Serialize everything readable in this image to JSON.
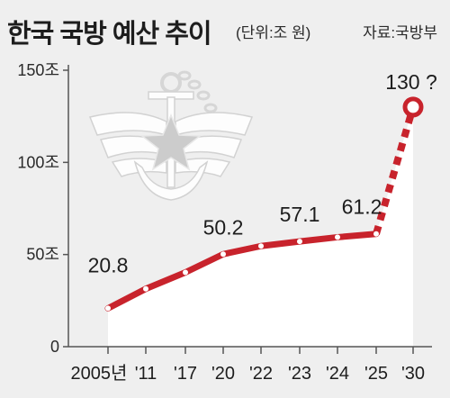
{
  "header": {
    "title": "한국 국방 예산 추이",
    "unit": "(단위:조 원)",
    "source": "자료:국방부"
  },
  "chart_data": {
    "type": "line",
    "title": "한국 국방 예산 추이",
    "unit": "(단위:조 원)",
    "source": "자료:국방부",
    "categories": [
      "2005년",
      "'11",
      "'17",
      "'20",
      "'22",
      "'23",
      "'24",
      "'25",
      "'30"
    ],
    "values": [
      20.8,
      31.4,
      40.3,
      50.2,
      54.6,
      57.1,
      59.4,
      61.2,
      130
    ],
    "labels": [
      {
        "index": 0,
        "text": "20.8"
      },
      {
        "index": 3,
        "text": "50.2"
      },
      {
        "index": 5,
        "text": "57.1"
      },
      {
        "index": 7,
        "text": "61.2"
      },
      {
        "index": 8,
        "text": "130 ?"
      }
    ],
    "projected_from_index": 7,
    "yticks": [
      "0",
      "50조",
      "100조",
      "150조"
    ],
    "ytick_values": [
      0,
      50,
      100,
      150
    ],
    "ylim": [
      0,
      150
    ],
    "grid": false,
    "colors": {
      "line": "#c8232c",
      "area": "#ffffff",
      "axis": "#555555"
    }
  }
}
